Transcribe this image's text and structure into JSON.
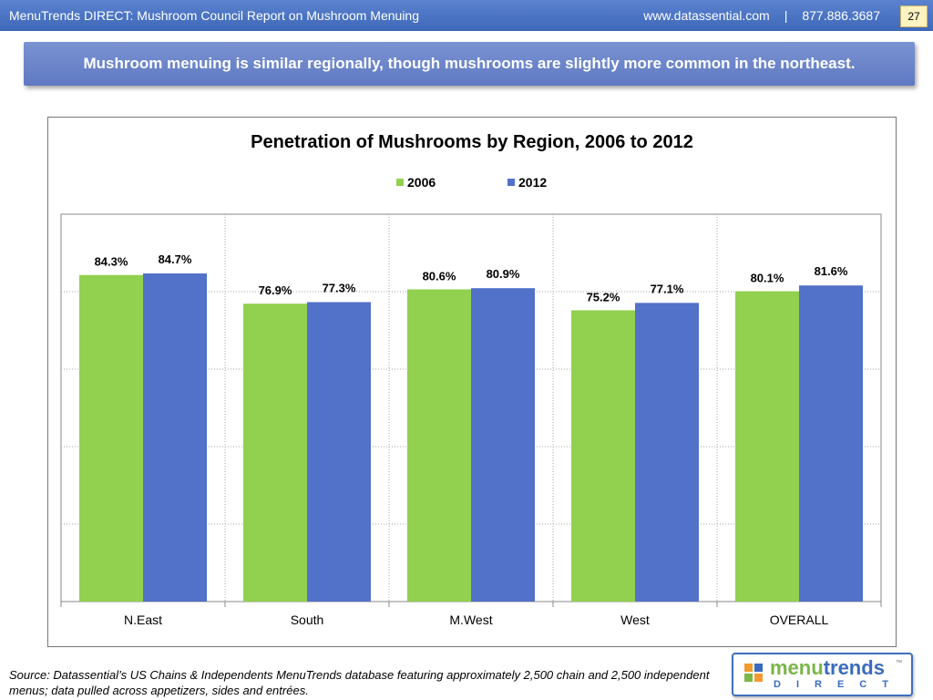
{
  "header": {
    "title": "MenuTrends DIRECT: Mushroom Council Report on Mushroom Menuing",
    "website": "www.datassential.com",
    "separator": "|",
    "phone": "877.886.3687",
    "page_number": "27"
  },
  "headline": "Mushroom menuing is similar regionally, though mushrooms are slightly more common in the northeast.",
  "chart_data": {
    "type": "bar",
    "title": "Penetration of Mushrooms by Region, 2006 to 2012",
    "categories": [
      "N.East",
      "South",
      "M.West",
      "West",
      "OVERALL"
    ],
    "series": [
      {
        "name": "2006",
        "color": "#92d050",
        "values": [
          84.3,
          76.9,
          80.6,
          75.2,
          80.1
        ],
        "labels": [
          "84.3%",
          "76.9%",
          "80.6%",
          "75.2%",
          "80.1%"
        ]
      },
      {
        "name": "2012",
        "color": "#5271c8",
        "values": [
          84.7,
          77.3,
          80.9,
          77.1,
          81.6
        ],
        "labels": [
          "84.7%",
          "77.3%",
          "80.9%",
          "77.1%",
          "81.6%"
        ]
      }
    ],
    "xlabel": "",
    "ylabel": "",
    "ylim": [
      0,
      100
    ],
    "grid": true,
    "legend_position": "top"
  },
  "source_note": "Source: Datassential’s US Chains & Independents MenuTrends database featuring approximately 2,500 chain and 2,500 independent menus; data pulled across appetizers, sides and entrées.",
  "logo": {
    "word_part1": "menu",
    "word_part2": "trends",
    "trademark": "™",
    "subtitle": "DIRECT"
  }
}
